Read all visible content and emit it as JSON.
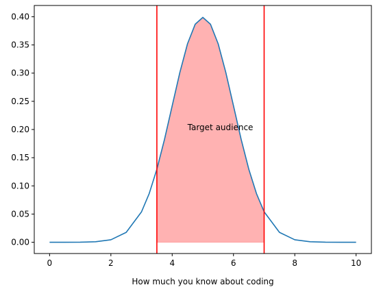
{
  "chart_data": {
    "type": "line",
    "title": "",
    "xlabel": "How much you know about coding",
    "ylabel": "",
    "xlim": [
      -0.5,
      10.5
    ],
    "ylim": [
      -0.02,
      0.42
    ],
    "grid": false,
    "legend": "none",
    "x_ticks": [
      0,
      2,
      4,
      6,
      8,
      10
    ],
    "x_tick_labels": [
      "0",
      "2",
      "4",
      "6",
      "8",
      "10"
    ],
    "y_ticks": [
      0.0,
      0.05,
      0.1,
      0.15,
      0.2,
      0.25,
      0.3,
      0.35,
      0.4
    ],
    "y_tick_labels": [
      "0.00",
      "0.05",
      "0.10",
      "0.15",
      "0.20",
      "0.25",
      "0.30",
      "0.35",
      "0.40"
    ],
    "series": [
      {
        "color": "#1f77b4",
        "x": [
          0,
          0.5,
          1,
          1.5,
          2,
          2.5,
          3,
          3.25,
          3.5,
          3.75,
          4,
          4.25,
          4.5,
          4.75,
          5,
          5.25,
          5.5,
          5.75,
          6,
          6.25,
          6.5,
          6.75,
          7,
          7.5,
          8,
          8.5,
          9,
          9.5,
          10
        ],
        "y": [
          0.0,
          0.0,
          0.0001,
          0.0009,
          0.0044,
          0.0175,
          0.054,
          0.0863,
          0.1295,
          0.1826,
          0.242,
          0.3011,
          0.3521,
          0.3867,
          0.3989,
          0.3867,
          0.3521,
          0.3011,
          0.242,
          0.1826,
          0.1295,
          0.0863,
          0.054,
          0.0175,
          0.0044,
          0.0009,
          0.0001,
          0.0,
          0.0
        ]
      }
    ],
    "shaded_region": {
      "x_from": 3.5,
      "x_to": 7,
      "color": "#ff7f7f"
    },
    "vertical_lines": [
      {
        "x": 3.5,
        "color": "#ff0000"
      },
      {
        "x": 7,
        "color": "#ff0000"
      }
    ],
    "annotation": {
      "text": "Target audience",
      "x": 4.5,
      "y": 0.2
    }
  }
}
